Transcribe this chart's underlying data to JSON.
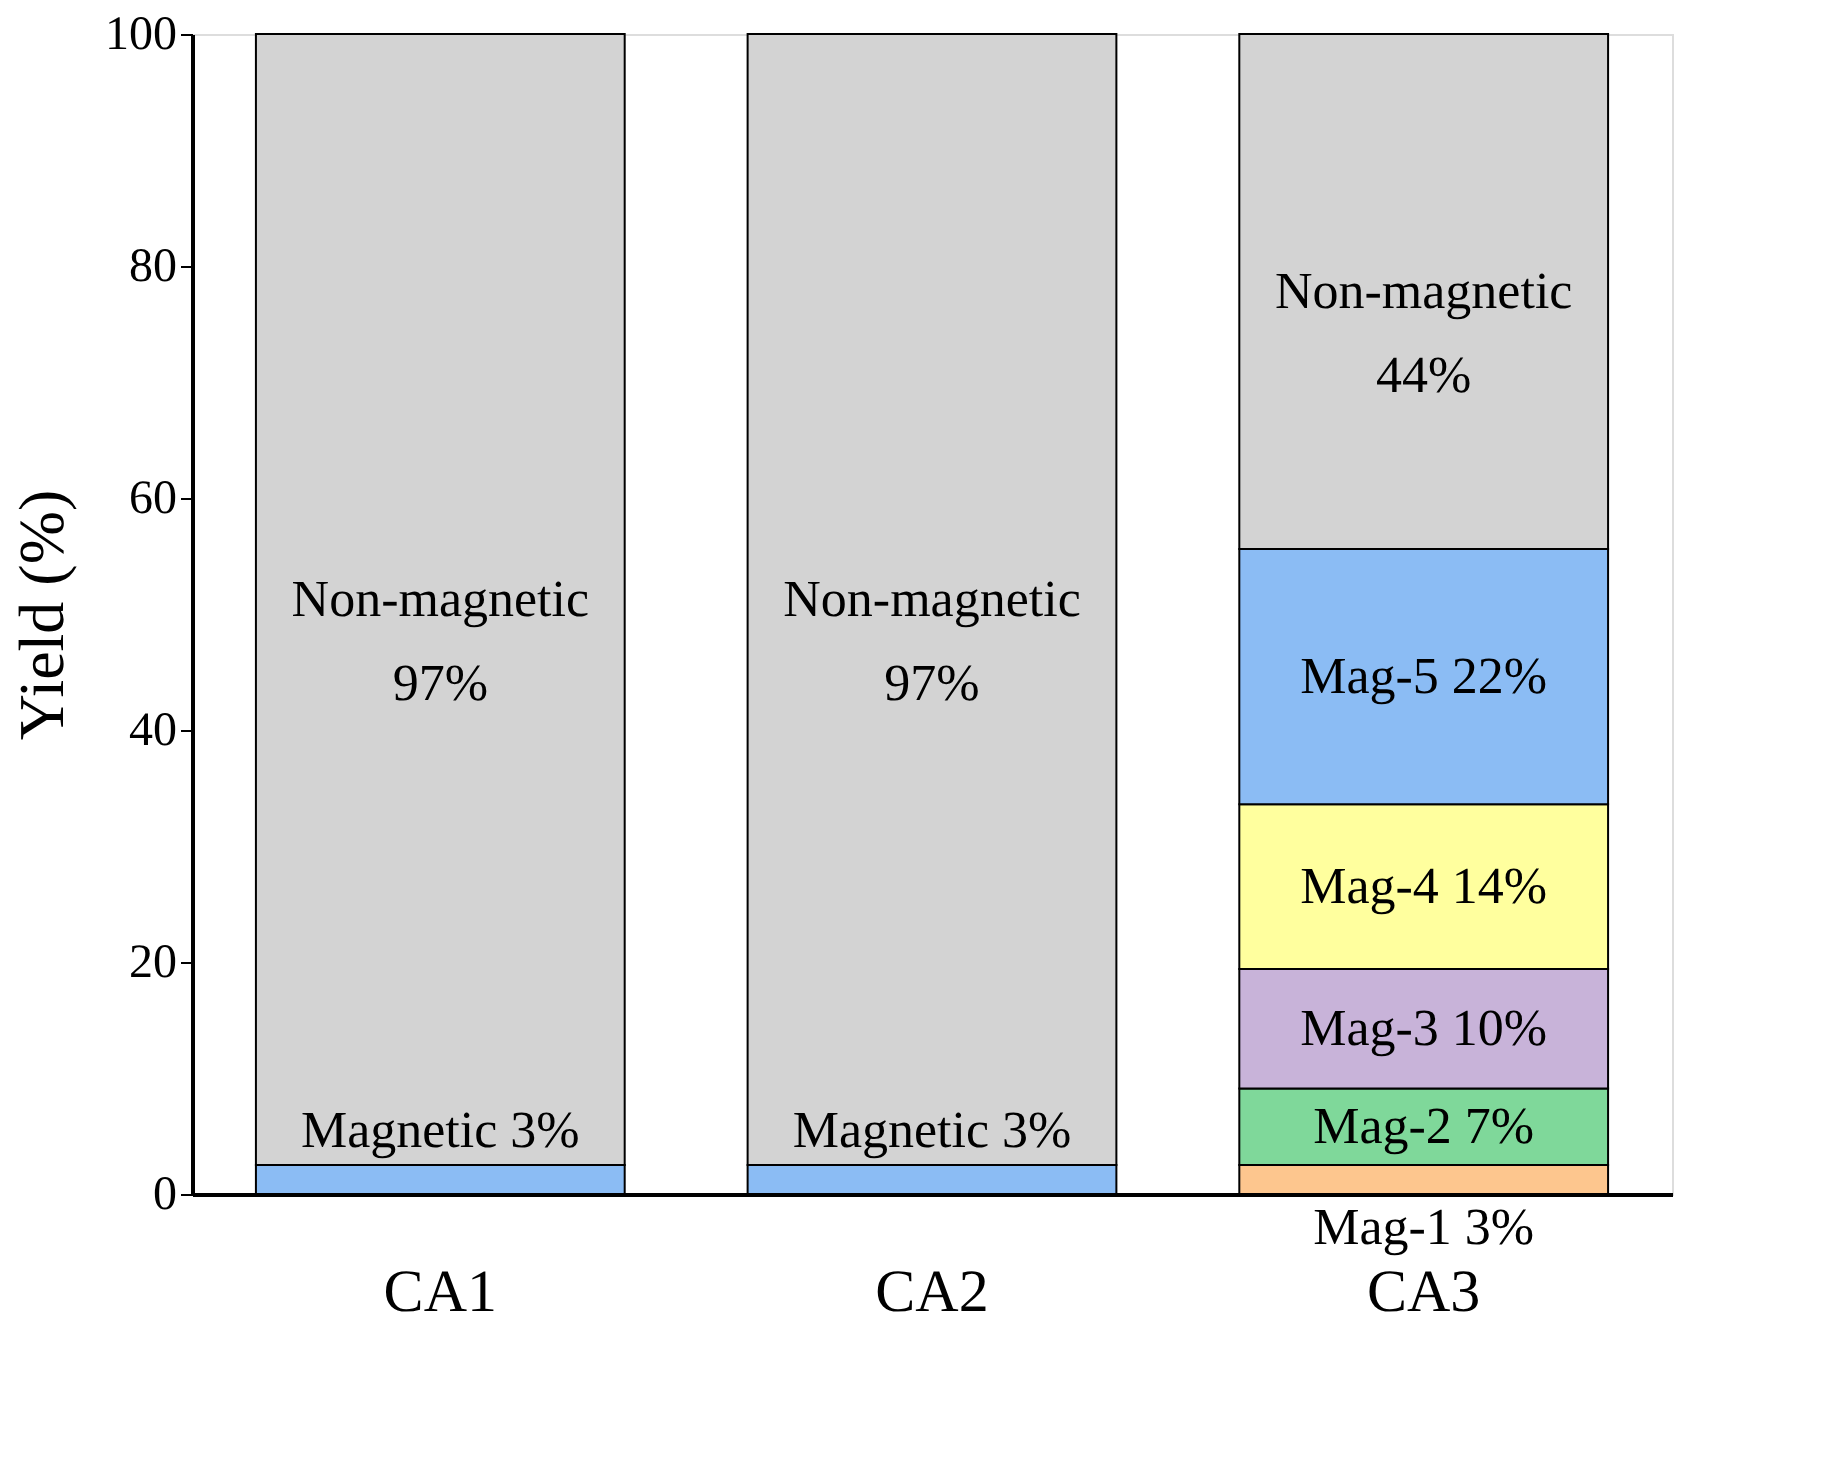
{
  "chart_data": {
    "type": "bar",
    "stacked": true,
    "ylabel": "Yield (%)",
    "categories": [
      "CA1",
      "CA2",
      "CA3"
    ],
    "ylim": [
      0,
      100
    ],
    "yticks": [
      0,
      20,
      40,
      60,
      80,
      100
    ],
    "grid": false,
    "series": [
      {
        "color": "#fdc68e",
        "values": [
          null,
          null,
          2.5
        ],
        "value_labels": [
          null,
          null,
          "Mag-1 3%"
        ]
      },
      {
        "color": "#7fd89a",
        "values": [
          null,
          null,
          6.6
        ],
        "value_labels": [
          null,
          null,
          "Mag-2 7%"
        ]
      },
      {
        "color": "#c8b3d9",
        "values": [
          null,
          null,
          10.3
        ],
        "value_labels": [
          null,
          null,
          "Mag-3 10%"
        ]
      },
      {
        "color": "#ffff9e",
        "values": [
          null,
          null,
          14.2
        ],
        "value_labels": [
          null,
          null,
          "Mag-4 14%"
        ]
      },
      {
        "color": "#8bbcf4",
        "values": [
          2.5,
          2.5,
          22
        ],
        "value_labels": [
          "Magnetic   3%",
          "Magnetic   3%",
          "Mag-5 22%"
        ]
      },
      {
        "color": "#d3d3d3",
        "values": [
          97.5,
          97.5,
          44.4
        ],
        "value_labels": [
          "Non-magnetic\n97%",
          "Non-magnetic\n97%",
          "Non-magnetic\n44%"
        ]
      }
    ]
  }
}
